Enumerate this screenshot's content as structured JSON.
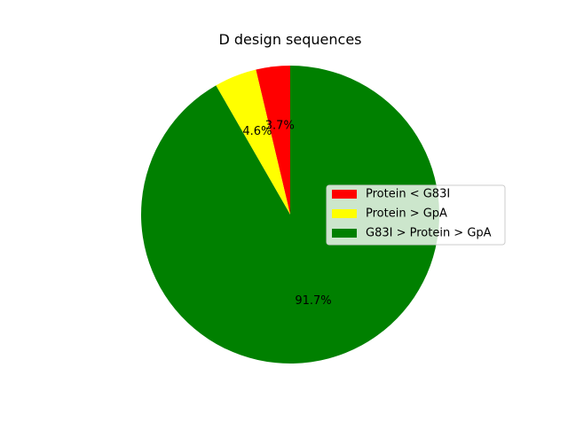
{
  "chart_data": {
    "type": "pie",
    "title": "D design sequences",
    "start_angle_deg": 90,
    "direction": "counterclockwise",
    "legend_placement": "center-right",
    "slices": [
      {
        "label": "Protein < G83I",
        "value": 3.7,
        "pct_label": "3.7%",
        "color": "#ff0000"
      },
      {
        "label": "Protein > GpA",
        "value": 4.6,
        "pct_label": "4.6%",
        "color": "#ffff00"
      },
      {
        "label": "G83I > Protein > GpA",
        "value": 91.7,
        "pct_label": "91.7%",
        "color": "#008000"
      }
    ]
  }
}
